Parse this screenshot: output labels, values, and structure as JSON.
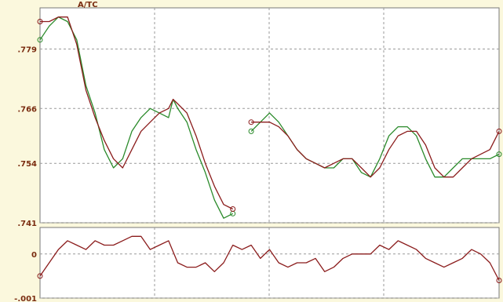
{
  "chart_data": [
    {
      "type": "line",
      "title": "A/TC",
      "ylim": [
        0.741,
        0.788
      ],
      "y_ticks": [
        0.741,
        0.754,
        0.766,
        0.779
      ],
      "y_tick_labels": [
        ".741",
        ".754",
        ".766",
        ".779"
      ],
      "grid": true,
      "x": [
        0,
        2,
        4,
        6,
        8,
        10,
        12,
        14,
        16,
        18,
        20,
        22,
        24,
        26,
        28,
        29,
        30,
        32,
        34,
        36,
        38,
        40,
        42,
        44,
        46,
        48,
        50,
        52,
        54,
        56,
        58,
        60,
        62,
        64,
        66,
        68,
        70,
        72,
        74,
        76,
        78,
        80,
        82,
        84,
        86,
        88,
        90,
        92,
        94,
        96,
        98,
        100
      ],
      "series": [
        {
          "color": "#2a8a2a",
          "values": [
            0.781,
            0.784,
            0.786,
            0.785,
            0.781,
            0.771,
            0.765,
            0.757,
            0.753,
            0.755,
            0.761,
            0.764,
            0.766,
            0.765,
            0.764,
            0.768,
            0.766,
            0.763,
            0.757,
            0.752,
            0.746,
            0.742,
            0.743,
            null,
            0.761,
            0.763,
            0.765,
            0.763,
            0.76,
            0.757,
            0.755,
            0.754,
            0.753,
            0.753,
            0.755,
            0.755,
            0.752,
            0.751,
            0.755,
            0.76,
            0.762,
            0.762,
            0.76,
            0.755,
            0.751,
            0.751,
            0.753,
            0.755,
            0.755,
            0.755,
            0.755,
            0.756
          ]
        },
        {
          "color": "#8b1c1c",
          "values": [
            0.785,
            0.785,
            0.786,
            0.786,
            0.78,
            0.77,
            0.764,
            0.759,
            0.755,
            0.753,
            0.757,
            0.761,
            0.763,
            0.765,
            0.766,
            0.768,
            0.767,
            0.765,
            0.76,
            0.754,
            0.749,
            0.745,
            0.744,
            null,
            0.763,
            0.763,
            0.763,
            0.762,
            0.76,
            0.757,
            0.755,
            0.754,
            0.753,
            0.754,
            0.755,
            0.755,
            0.753,
            0.751,
            0.753,
            0.757,
            0.76,
            0.761,
            0.761,
            0.758,
            0.753,
            0.751,
            0.751,
            0.753,
            0.755,
            0.756,
            0.757,
            0.761
          ]
        }
      ]
    },
    {
      "type": "line",
      "ylim": [
        -0.001,
        0.0006
      ],
      "y_ticks": [
        0,
        -0.001
      ],
      "y_tick_labels": [
        "0",
        "-.001"
      ],
      "grid": true,
      "x": [
        0,
        2,
        4,
        6,
        8,
        10,
        12,
        14,
        16,
        18,
        20,
        22,
        24,
        26,
        28,
        30,
        32,
        34,
        36,
        38,
        40,
        42,
        44,
        46,
        48,
        50,
        52,
        54,
        56,
        58,
        60,
        62,
        64,
        66,
        68,
        70,
        72,
        74,
        76,
        78,
        80,
        82,
        84,
        86,
        88,
        90,
        92,
        94,
        96,
        98,
        100
      ],
      "series": [
        {
          "color": "#8b1c1c",
          "values": [
            -0.0005,
            -0.0002,
            0.0001,
            0.0003,
            0.0002,
            0.0001,
            0.0003,
            0.0002,
            0.0002,
            0.0003,
            0.0004,
            0.0004,
            0.0001,
            0.0002,
            0.0003,
            -0.0002,
            -0.0003,
            -0.0003,
            -0.0002,
            -0.0004,
            -0.0002,
            0.0002,
            0.0001,
            0.0002,
            -0.0001,
            0.0001,
            -0.0002,
            -0.0003,
            -0.0002,
            -0.0002,
            -0.0001,
            -0.0004,
            -0.0003,
            -0.0001,
            0.0,
            0.0,
            0.0,
            0.0002,
            0.0001,
            0.0003,
            0.0002,
            0.0001,
            -0.0001,
            -0.0002,
            -0.0003,
            -0.0002,
            -0.0001,
            0.0001,
            0.0,
            -0.0002,
            -0.0006
          ]
        }
      ]
    }
  ]
}
